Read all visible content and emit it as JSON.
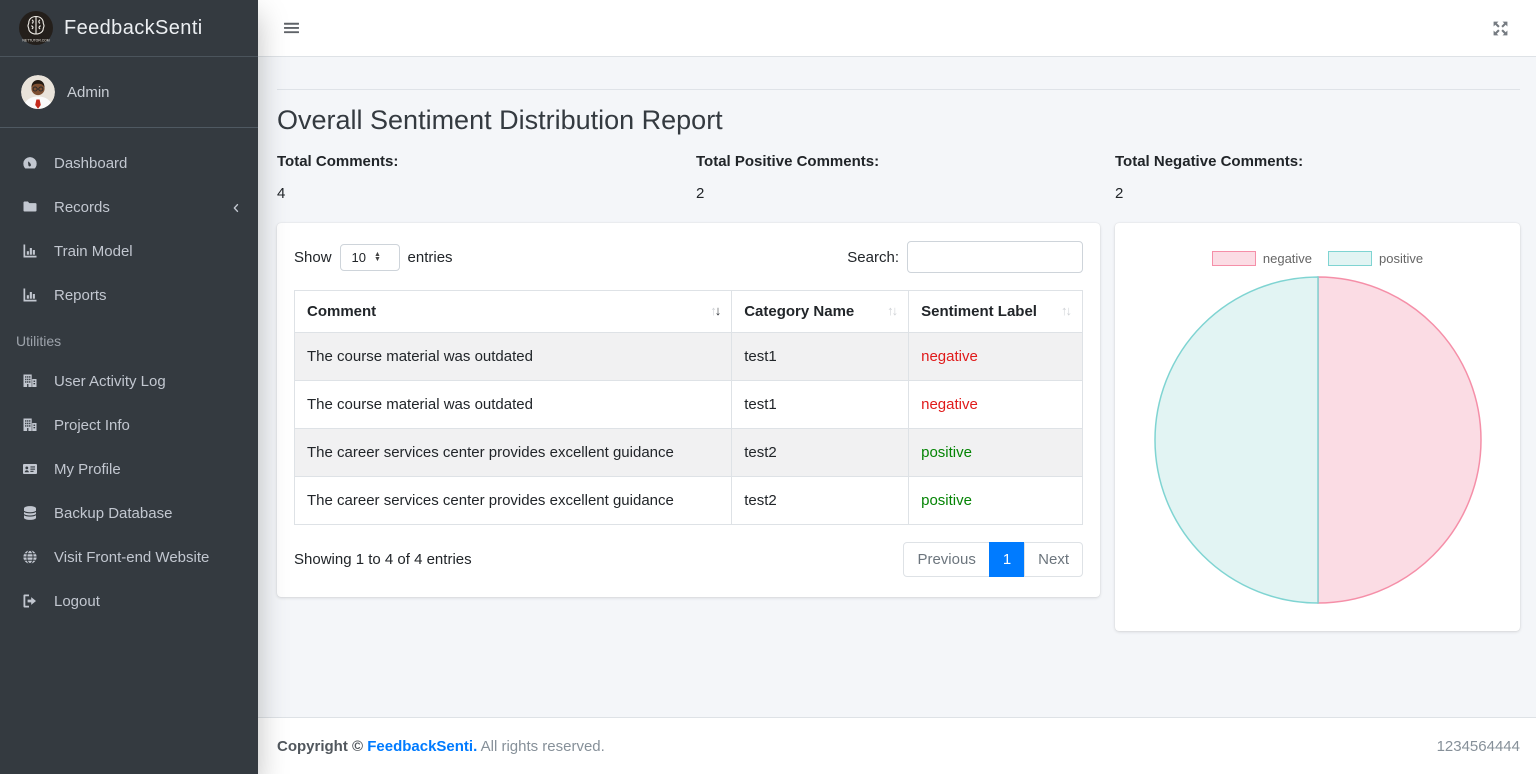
{
  "brand": {
    "name": "FeedbackSenti",
    "logo_caption": "NETTUTOR.COM"
  },
  "user": {
    "name": "Admin"
  },
  "sidebar": {
    "items": [
      {
        "label": "Dashboard",
        "icon": "tachometer-icon"
      },
      {
        "label": "Records",
        "icon": "folder-icon",
        "collapsible": true
      },
      {
        "label": "Train Model",
        "icon": "chart-bar-icon"
      },
      {
        "label": "Reports",
        "icon": "chart-bar-icon"
      }
    ],
    "section_header": "Utilities",
    "utility_items": [
      {
        "label": "User Activity Log",
        "icon": "building-icon"
      },
      {
        "label": "Project Info",
        "icon": "building-icon"
      },
      {
        "label": "My Profile",
        "icon": "id-card-icon"
      },
      {
        "label": "Backup Database",
        "icon": "database-icon"
      },
      {
        "label": "Visit Front-end Website",
        "icon": "globe-icon"
      },
      {
        "label": "Logout",
        "icon": "logout-icon"
      }
    ]
  },
  "page": {
    "title": "Overall Sentiment Distribution Report"
  },
  "stats": [
    {
      "label": "Total Comments:",
      "value": "4"
    },
    {
      "label": "Total Positive Comments:",
      "value": "2"
    },
    {
      "label": "Total Negative Comments:",
      "value": "2"
    }
  ],
  "datatable": {
    "show_label": "Show",
    "page_length": "10",
    "entries_label": "entries",
    "search_label": "Search:",
    "search_value": "",
    "columns": [
      "Comment",
      "Category Name",
      "Sentiment Label"
    ],
    "rows": [
      {
        "comment": "The course material was outdated",
        "category": "test1",
        "sentiment": "negative"
      },
      {
        "comment": "The course material was outdated",
        "category": "test1",
        "sentiment": "negative"
      },
      {
        "comment": "The career services center provides excellent guidance",
        "category": "test2",
        "sentiment": "positive"
      },
      {
        "comment": "The career services center provides excellent guidance",
        "category": "test2",
        "sentiment": "positive"
      }
    ],
    "info": "Showing 1 to 4 of 4 entries",
    "pagination": {
      "previous": "Previous",
      "current_page": "1",
      "next": "Next"
    }
  },
  "chart_data": {
    "type": "pie",
    "labels": [
      "negative",
      "positive"
    ],
    "values": [
      2,
      2
    ],
    "slices": [
      {
        "label": "negative",
        "value": 2,
        "fill": "#fbdce4",
        "border": "#f58fa8"
      },
      {
        "label": "positive",
        "value": 2,
        "fill": "#e2f4f3",
        "border": "#7fd4d2"
      }
    ],
    "legend_position": "top",
    "start_angle_deg": -90,
    "direction": "clockwise"
  },
  "colors": {
    "sentiment_negative": "#e01a1a",
    "sentiment_positive": "#048404",
    "accent": "#007bff"
  },
  "footer": {
    "copyright_label": "Copyright ©",
    "brand_link": "FeedbackSenti.",
    "rights_text": "All rights reserved.",
    "version_text": "1234564444"
  }
}
